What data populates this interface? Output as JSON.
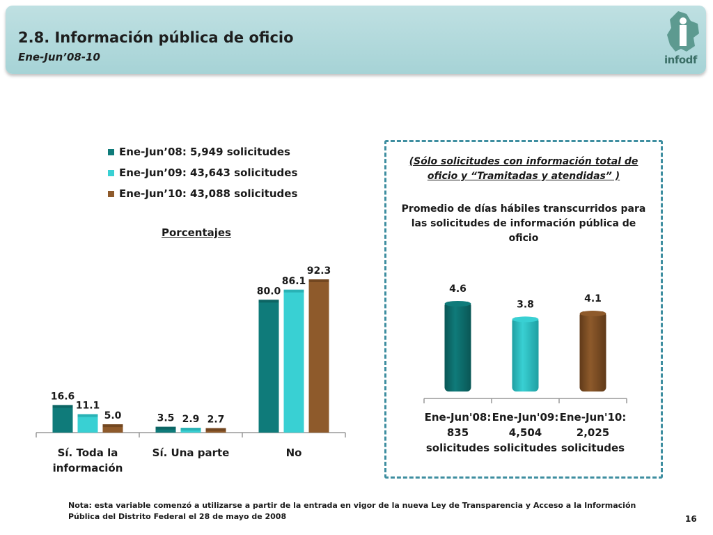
{
  "header": {
    "title": "2.8. Información pública de oficio",
    "subtitle": "Ene-Jun’08-10",
    "logo_text": "infodf"
  },
  "colors": {
    "series_2008": "#0f7b7a",
    "series_2009": "#39d0d3",
    "series_2010": "#8e5a2b",
    "header_bg": "#a6d3d6",
    "panel_border": "#3e8ea0"
  },
  "legend": {
    "items": [
      "Ene-Jun’08: 5,949 solicitudes",
      "Ene-Jun’09: 43,643 solicitudes",
      "Ene-Jun’10: 43,088 solicitudes"
    ]
  },
  "left_chart_label": "Porcentajes",
  "right_panel": {
    "note": "(Sólo solicitudes con información total de oficio y “Tramitadas y atendidas” )",
    "title": "Promedio de días hábiles transcurridos  para las solicitudes de información pública de oficio"
  },
  "chart_data": [
    {
      "type": "bar",
      "title": "",
      "categories": [
        [
          "Sí. Toda la",
          "información"
        ],
        [
          "Sí. Una parte"
        ],
        [
          "No"
        ]
      ],
      "series": [
        {
          "name": "Ene-Jun’08: 5,949 solicitudes",
          "values": [
            16.6,
            3.5,
            80.0
          ]
        },
        {
          "name": "Ene-Jun’09: 43,643 solicitudes",
          "values": [
            11.1,
            2.9,
            86.1
          ]
        },
        {
          "name": "Ene-Jun’10: 43,088 solicitudes",
          "values": [
            5.0,
            2.7,
            92.3
          ]
        }
      ],
      "value_labels": [
        [
          "16.6",
          "3.5",
          "80.0"
        ],
        [
          "11.1",
          "2.9",
          "86.1"
        ],
        [
          "5.0",
          "2.7",
          "92.3"
        ]
      ],
      "ylim": [
        0,
        100
      ],
      "grid": false
    },
    {
      "type": "bar",
      "title": "Promedio de días hábiles transcurridos  para las solicitudes de información pública de oficio",
      "categories": [
        [
          "Ene-Jun'08:",
          "835",
          "solicitudes"
        ],
        [
          "Ene-Jun'09:",
          "4,504",
          "solicitudes"
        ],
        [
          "Ene-Jun'10:",
          "2,025",
          "solicitudes"
        ]
      ],
      "values": [
        4.6,
        3.8,
        4.1
      ],
      "value_labels": [
        "4.6",
        "3.8",
        "4.1"
      ],
      "ylim": [
        0,
        4.6
      ],
      "grid": false
    }
  ],
  "footnote": "Nota: esta variable comenzó a utilizarse a partir de la entrada en vigor de la nueva Ley de Transparencia y Acceso a la Información Pública del Distrito Federal el 28 de mayo de 2008",
  "page_number": "16"
}
